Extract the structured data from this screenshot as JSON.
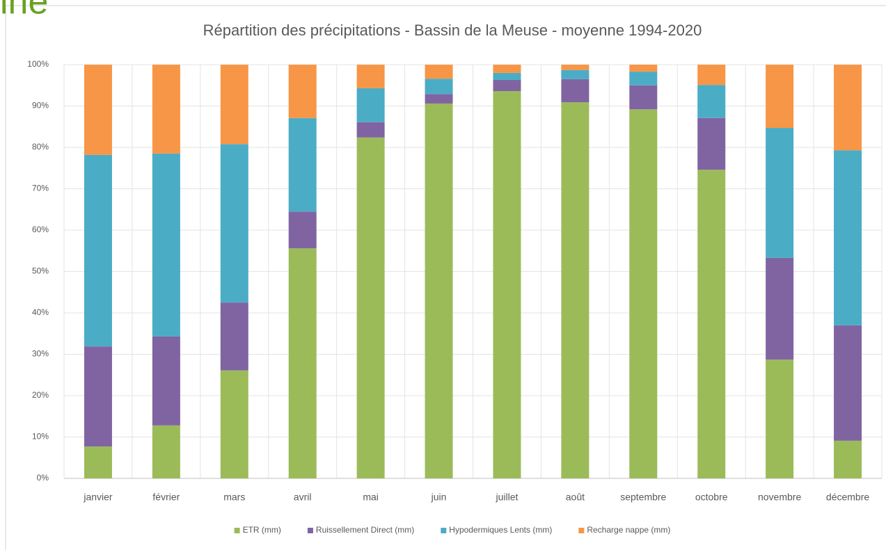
{
  "header_text": "ine",
  "chart_data": {
    "type": "stacked_bar",
    "title": "Répartition des précipitations - Bassin de la Meuse - moyenne 1994-2020",
    "categories": [
      "janvier",
      "février",
      "mars",
      "avril",
      "mai",
      "juin",
      "juillet",
      "août",
      "septembre",
      "octobre",
      "novembre",
      "décembre"
    ],
    "series": [
      {
        "name": "ETR (mm)",
        "color": "#9bbb59",
        "values": [
          7.7,
          12.8,
          26.1,
          55.6,
          82.4,
          90.6,
          93.6,
          90.9,
          89.2,
          74.6,
          28.7,
          9.1
        ]
      },
      {
        "name": "Ruissellement Direct (mm)",
        "color": "#8064a2",
        "values": [
          24.2,
          21.5,
          16.4,
          8.9,
          3.7,
          2.3,
          2.7,
          5.6,
          5.8,
          12.5,
          24.6,
          27.9
        ]
      },
      {
        "name": "Hypodermiques Lents (mm)",
        "color": "#4bacc6",
        "values": [
          46.3,
          44.2,
          38.3,
          22.6,
          8.2,
          3.7,
          1.7,
          2.2,
          3.3,
          8.0,
          31.4,
          42.3
        ]
      },
      {
        "name": "Recharge nappe (mm)",
        "color": "#f79646",
        "values": [
          21.8,
          21.5,
          19.2,
          12.9,
          5.7,
          3.4,
          2.0,
          1.3,
          1.7,
          4.9,
          15.3,
          20.7
        ]
      }
    ],
    "ylim": [
      0,
      100
    ],
    "yticks": [
      {
        "value": 0,
        "label": "0%"
      },
      {
        "value": 10,
        "label": "10%"
      },
      {
        "value": 20,
        "label": "20%"
      },
      {
        "value": 30,
        "label": "30%"
      },
      {
        "value": 40,
        "label": "40%"
      },
      {
        "value": 50,
        "label": "50%"
      },
      {
        "value": 60,
        "label": "60%"
      },
      {
        "value": 70,
        "label": "70%"
      },
      {
        "value": 80,
        "label": "80%"
      },
      {
        "value": 90,
        "label": "90%"
      },
      {
        "value": 100,
        "label": "100%"
      }
    ],
    "grid": true,
    "legend": "bottom"
  }
}
